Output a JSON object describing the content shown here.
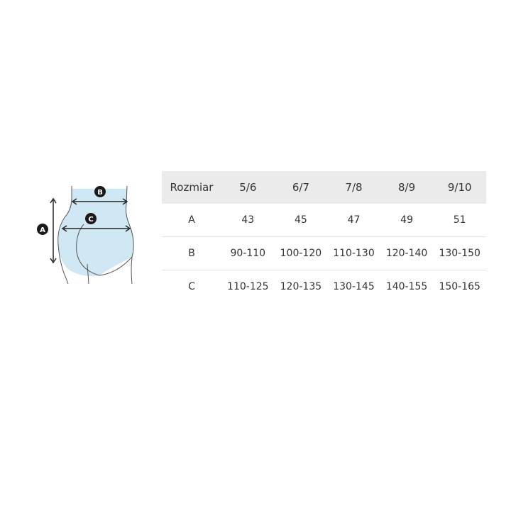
{
  "illustration": {
    "labels": [
      "A",
      "B",
      "C"
    ],
    "fill_color": "#cfe8f3"
  },
  "table": {
    "header": [
      "Rozmiar",
      "5/6",
      "6/7",
      "7/8",
      "8/9",
      "9/10"
    ],
    "rows": [
      [
        "A",
        "43",
        "45",
        "47",
        "49",
        "51"
      ],
      [
        "B",
        "90-110",
        "100-120",
        "110-130",
        "120-140",
        "130-150"
      ],
      [
        "C",
        "110-125",
        "120-135",
        "130-145",
        "140-155",
        "150-165"
      ]
    ]
  }
}
